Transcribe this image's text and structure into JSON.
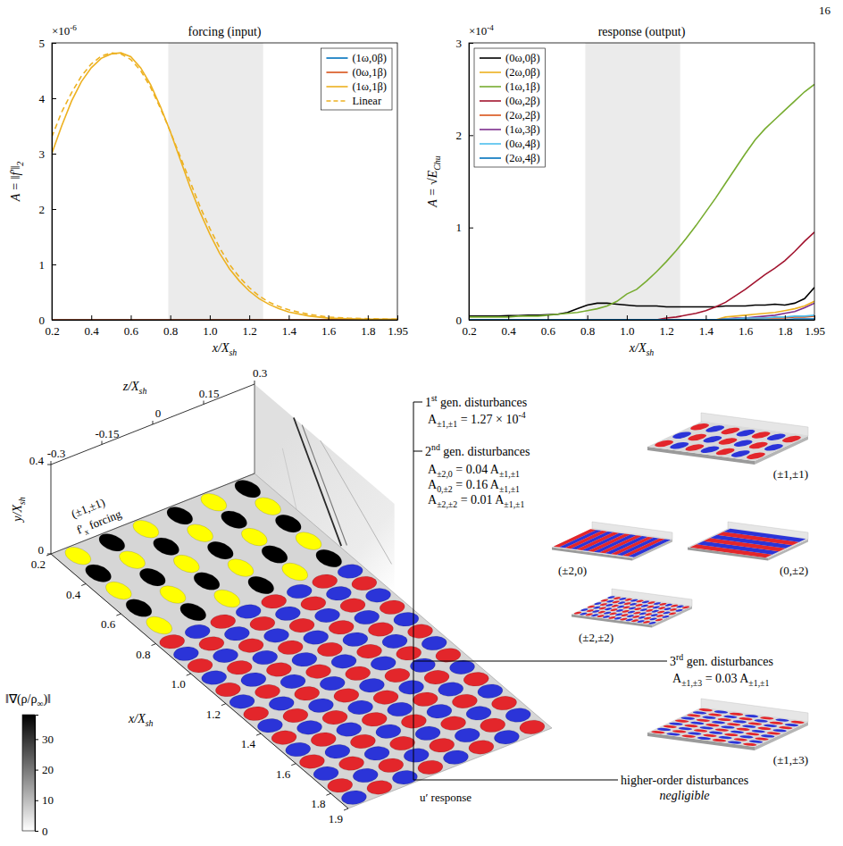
{
  "page_number": "16",
  "chart_data": [
    {
      "type": "line",
      "title": "forcing (input)",
      "xlabel": [
        {
          "text": "x/X"
        },
        {
          "sub": "sh"
        }
      ],
      "ylabel": [
        {
          "text": "A = ‖f′‖"
        },
        {
          "sub": "2"
        }
      ],
      "y_multiplier": [
        {
          "text": "×10"
        },
        {
          "sup": "-6"
        }
      ],
      "x": [
        0.2,
        0.25,
        0.3,
        0.35,
        0.4,
        0.45,
        0.5,
        0.55,
        0.6,
        0.65,
        0.7,
        0.75,
        0.8,
        0.85,
        0.9,
        0.95,
        1.0,
        1.05,
        1.1,
        1.15,
        1.2,
        1.25,
        1.3,
        1.35,
        1.4,
        1.5,
        1.6,
        1.7,
        1.8,
        1.95
      ],
      "xlim": [
        0.2,
        1.95
      ],
      "xticks": [
        0.2,
        0.4,
        0.6,
        0.8,
        {
          "value": 1,
          "label": "1.0"
        },
        1.2,
        1.4,
        1.6,
        1.8,
        1.95
      ],
      "ylim": [
        0,
        5
      ],
      "yticks": [
        0,
        1,
        2,
        3,
        4,
        5
      ],
      "shaded_region": [
        0.79,
        1.27
      ],
      "legend": "upper right",
      "series": [
        {
          "name": "(1ω,0β)",
          "color": "#0072bd",
          "values": [
            0,
            0,
            0,
            0,
            0,
            0,
            0,
            0,
            0,
            0,
            0,
            0,
            0,
            0,
            0,
            0,
            0,
            0,
            0,
            0,
            0,
            0,
            0,
            0,
            0,
            0,
            0,
            0,
            0,
            0
          ]
        },
        {
          "name": "(0ω,1β)",
          "color": "#d95319",
          "values": [
            0,
            0,
            0,
            0,
            0,
            0,
            0,
            0,
            0,
            0,
            0,
            0,
            0,
            0,
            0,
            0,
            0,
            0,
            0,
            0,
            0,
            0,
            0,
            0,
            0,
            0,
            0,
            0,
            0,
            0
          ]
        },
        {
          "name": "(1ω,1β)",
          "color": "#edb120",
          "values": [
            3.0,
            3.5,
            3.95,
            4.3,
            4.55,
            4.72,
            4.8,
            4.82,
            4.75,
            4.55,
            4.25,
            3.85,
            3.4,
            2.9,
            2.4,
            1.95,
            1.55,
            1.2,
            0.92,
            0.7,
            0.52,
            0.38,
            0.28,
            0.2,
            0.14,
            0.07,
            0.03,
            0.02,
            0.01,
            0.01
          ]
        },
        {
          "name": "Linear",
          "color": "#edb120",
          "line_style": "dashed",
          "values": [
            3.3,
            3.75,
            4.1,
            4.4,
            4.62,
            4.76,
            4.82,
            4.8,
            4.7,
            4.5,
            4.2,
            3.82,
            3.4,
            2.95,
            2.5,
            2.05,
            1.65,
            1.3,
            1.0,
            0.77,
            0.58,
            0.43,
            0.32,
            0.24,
            0.18,
            0.1,
            0.05,
            0.03,
            0.02,
            0.01
          ]
        }
      ]
    },
    {
      "type": "line",
      "title": "response (output)",
      "xlabel": [
        {
          "text": "x/X"
        },
        {
          "sub": "sh"
        }
      ],
      "ylabel": [
        {
          "text": "A = √E"
        },
        {
          "sub": "Chu"
        }
      ],
      "y_multiplier": [
        {
          "text": "×10"
        },
        {
          "sup": "-4"
        }
      ],
      "x": [
        0.2,
        0.25,
        0.3,
        0.35,
        0.4,
        0.45,
        0.5,
        0.55,
        0.6,
        0.65,
        0.7,
        0.75,
        0.8,
        0.85,
        0.9,
        0.95,
        1.0,
        1.05,
        1.1,
        1.15,
        1.2,
        1.25,
        1.3,
        1.35,
        1.4,
        1.45,
        1.5,
        1.55,
        1.6,
        1.65,
        1.7,
        1.75,
        1.8,
        1.85,
        1.9,
        1.95
      ],
      "xlim": [
        0.2,
        1.95
      ],
      "xticks": [
        0.2,
        0.4,
        0.6,
        0.8,
        {
          "value": 1,
          "label": "1.0"
        },
        1.2,
        1.4,
        1.6,
        1.8,
        1.95
      ],
      "ylim": [
        0,
        3
      ],
      "yticks": [
        0,
        1,
        2,
        3
      ],
      "shaded_region": [
        0.79,
        1.27
      ],
      "legend": "upper left",
      "series": [
        {
          "name": "(0ω,0β)",
          "color": "#000000",
          "values": [
            0.04,
            0.04,
            0.04,
            0.04,
            0.045,
            0.045,
            0.05,
            0.05,
            0.055,
            0.06,
            0.08,
            0.12,
            0.16,
            0.18,
            0.18,
            0.17,
            0.16,
            0.15,
            0.15,
            0.15,
            0.14,
            0.14,
            0.14,
            0.14,
            0.14,
            0.14,
            0.15,
            0.15,
            0.15,
            0.16,
            0.16,
            0.17,
            0.16,
            0.18,
            0.23,
            0.35
          ]
        },
        {
          "name": "(2ω,0β)",
          "color": "#edb120",
          "values": [
            0,
            0,
            0,
            0,
            0,
            0,
            0,
            0,
            0,
            0,
            0,
            0,
            0,
            0,
            0,
            0,
            0,
            0,
            0,
            0,
            0,
            0,
            0,
            0,
            0,
            0,
            0.03,
            0.04,
            0.05,
            0.06,
            0.07,
            0.08,
            0.1,
            0.12,
            0.15,
            0.2
          ]
        },
        {
          "name": "(1ω,1β)",
          "color": "#77ac30",
          "values": [
            0.03,
            0.03,
            0.03,
            0.03,
            0.03,
            0.04,
            0.04,
            0.04,
            0.05,
            0.06,
            0.07,
            0.08,
            0.1,
            0.12,
            0.15,
            0.2,
            0.28,
            0.33,
            0.42,
            0.52,
            0.63,
            0.75,
            0.88,
            1.02,
            1.17,
            1.32,
            1.48,
            1.64,
            1.8,
            1.95,
            2.07,
            2.17,
            2.27,
            2.37,
            2.47,
            2.55
          ]
        },
        {
          "name": "(0ω,2β)",
          "color": "#a2142f",
          "values": [
            0,
            0,
            0,
            0,
            0,
            0,
            0,
            0,
            0,
            0,
            0,
            0,
            0,
            0,
            0,
            0,
            0,
            0,
            0,
            0,
            0.02,
            0.03,
            0.05,
            0.07,
            0.1,
            0.14,
            0.19,
            0.26,
            0.33,
            0.41,
            0.49,
            0.56,
            0.64,
            0.74,
            0.85,
            0.95
          ]
        },
        {
          "name": "(2ω,2β)",
          "color": "#d95319",
          "values": [
            0,
            0,
            0,
            0,
            0,
            0,
            0,
            0,
            0,
            0,
            0,
            0,
            0,
            0,
            0,
            0,
            0,
            0,
            0,
            0,
            0,
            0,
            0,
            0,
            0,
            0,
            0.01,
            0.01,
            0.01,
            0.01,
            0.02,
            0.02,
            0.02,
            0.03,
            0.03,
            0.04
          ]
        },
        {
          "name": "(1ω,3β)",
          "color": "#7e2f8e",
          "values": [
            0,
            0,
            0,
            0,
            0,
            0,
            0,
            0,
            0,
            0,
            0,
            0,
            0,
            0,
            0,
            0,
            0,
            0,
            0,
            0,
            0,
            0,
            0,
            0,
            0,
            0,
            0.01,
            0.02,
            0.02,
            0.03,
            0.04,
            0.05,
            0.07,
            0.09,
            0.13,
            0.18
          ]
        },
        {
          "name": "(0ω,4β)",
          "color": "#4dbeee",
          "values": [
            0,
            0,
            0,
            0,
            0,
            0,
            0,
            0,
            0,
            0,
            0,
            0,
            0,
            0,
            0,
            0,
            0,
            0,
            0,
            0,
            0,
            0,
            0,
            0,
            0,
            0,
            0.01,
            0.01,
            0.02,
            0.02,
            0.02,
            0.03,
            0.03,
            0.04,
            0.04,
            0.05
          ]
        },
        {
          "name": "(2ω,4β)",
          "color": "#0072bd",
          "values": [
            0,
            0,
            0,
            0,
            0,
            0,
            0,
            0,
            0,
            0,
            0,
            0,
            0,
            0,
            0,
            0,
            0,
            0,
            0,
            0,
            0,
            0,
            0,
            0,
            0,
            0,
            0,
            0,
            0,
            0,
            0,
            0,
            0,
            0.01,
            0.01,
            0.01
          ]
        }
      ]
    }
  ],
  "diagram": {
    "x_axis": {
      "label": [
        {
          "text": "x/X"
        },
        {
          "sub": "sh"
        }
      ],
      "range": [
        0.2,
        1.9
      ],
      "ticks": [
        0.2,
        0.4,
        0.6,
        0.8,
        {
          "value": 1,
          "label": "1.0"
        },
        1.2,
        1.4,
        1.6,
        1.8,
        1.9
      ]
    },
    "z_axis": {
      "label": [
        {
          "text": "z/X"
        },
        {
          "sub": "sh"
        }
      ],
      "range": [
        -0.3,
        0.3
      ],
      "ticks": [
        -0.3,
        -0.15,
        0,
        0.15,
        0.3
      ]
    },
    "y_axis": {
      "label": [
        {
          "text": "y/X"
        },
        {
          "sub": "sh"
        }
      ],
      "range": [
        0,
        0.4
      ],
      "ticks": [
        0,
        0.4
      ]
    },
    "colorbar": {
      "label": [
        {
          "text": "‖∇(ρ/ρ"
        },
        {
          "sub": "∞"
        },
        {
          "text": ")‖"
        }
      ],
      "range": [
        0,
        38
      ],
      "ticks": [
        0,
        10,
        20,
        30
      ]
    },
    "schlieren_wall_x": [
      0.2,
      1.0
    ],
    "forcing_region": [
      0.2,
      0.78
    ],
    "response_region": [
      0.78,
      1.9
    ],
    "forcing_label": [
      [
        {
          "text": "(±1,±1)"
        }
      ],
      [
        {
          "text": "f′"
        },
        {
          "sub": "x"
        },
        {
          "text": " forcing"
        }
      ]
    ],
    "response_label": [
      {
        "text": "u′ response"
      }
    ],
    "annotations": [
      {
        "title": [
          {
            "text": "1"
          },
          {
            "sup": "st"
          },
          {
            "text": " gen. disturbances"
          }
        ],
        "lines": [
          [
            {
              "text": "A"
            },
            {
              "sub": "±1,±1"
            },
            {
              "text": " = 1.27 × 10"
            },
            {
              "sup": "-4"
            }
          ]
        ]
      },
      {
        "title": [
          {
            "text": "2"
          },
          {
            "sup": "nd"
          },
          {
            "text": " gen. disturbances"
          }
        ],
        "lines": [
          [
            {
              "text": "A"
            },
            {
              "sub": "±2,0"
            },
            {
              "text": " = 0.04 A"
            },
            {
              "sub": "±1,±1"
            }
          ],
          [
            {
              "text": "A"
            },
            {
              "sub": "0,±2"
            },
            {
              "text": " = 0.16 A"
            },
            {
              "sub": "±1,±1"
            }
          ],
          [
            {
              "text": "A"
            },
            {
              "sub": "±2,±2"
            },
            {
              "text": " = 0.01 A"
            },
            {
              "sub": "±1,±1"
            }
          ]
        ]
      },
      {
        "title": [
          {
            "text": "3"
          },
          {
            "sup": "rd"
          },
          {
            "text": " gen. disturbances"
          }
        ],
        "lines": [
          [
            {
              "text": "A"
            },
            {
              "sub": "±1,±3"
            },
            {
              "text": " = 0.03 A"
            },
            {
              "sub": "±1,±1"
            }
          ]
        ]
      },
      {
        "title": [
          {
            "text": "higher-order disturbances"
          }
        ],
        "lines": [
          [
            {
              "text": "negligible"
            }
          ]
        ]
      }
    ],
    "thumbnails": [
      {
        "label": "(±1,±1)",
        "modes": [
          1,
          1
        ]
      },
      {
        "label": "(±2,0)",
        "modes": [
          2,
          0
        ]
      },
      {
        "label": "(0,±2)",
        "modes": [
          0,
          2
        ]
      },
      {
        "label": "(±2,±2)",
        "modes": [
          2,
          2
        ]
      },
      {
        "label": "(±1,±3)",
        "modes": [
          1,
          3
        ]
      }
    ]
  }
}
